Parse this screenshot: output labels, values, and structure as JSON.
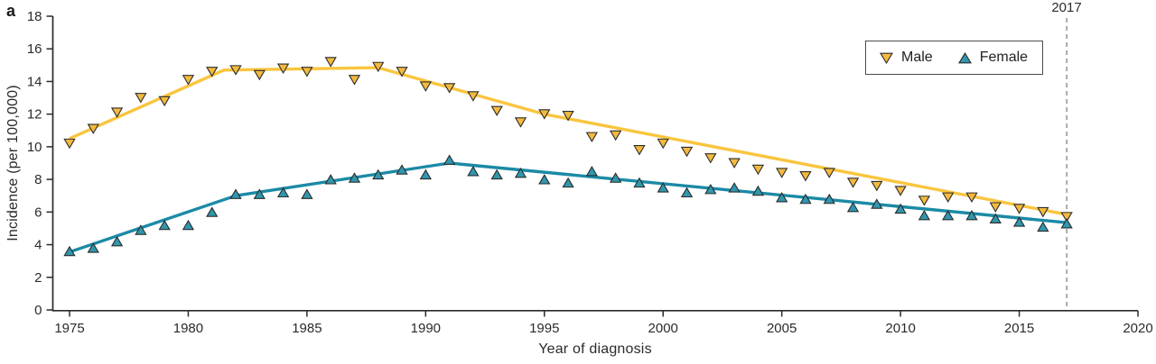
{
  "figure": {
    "panel_label": "a"
  },
  "chart_data": {
    "type": "scatter",
    "title": "",
    "xlabel": "Year of diagnosis",
    "ylabel": "Incidence (per 100,000)",
    "xlim": [
      1975,
      2020
    ],
    "ylim": [
      0,
      18
    ],
    "xticks": [
      1975,
      1980,
      1985,
      1990,
      1995,
      2000,
      2005,
      2010,
      2015,
      2020
    ],
    "yticks": [
      0,
      2,
      4,
      6,
      8,
      10,
      12,
      14,
      16,
      18
    ],
    "grid": false,
    "legend_position": "top-right",
    "annotation": {
      "label": "2017",
      "x": 2017,
      "style": "dashed-vertical-line"
    },
    "colors": {
      "axis": "#2b2b2b",
      "tick_text": "#2b2b2b",
      "dashed_line": "#8a8a8a",
      "marker_outline": "#2b2b2b"
    },
    "x": [
      1975,
      1976,
      1977,
      1978,
      1979,
      1980,
      1981,
      1982,
      1983,
      1984,
      1985,
      1986,
      1987,
      1988,
      1989,
      1990,
      1991,
      1992,
      1993,
      1994,
      1995,
      1996,
      1997,
      1998,
      1999,
      2000,
      2001,
      2002,
      2003,
      2004,
      2005,
      2006,
      2007,
      2008,
      2009,
      2010,
      2011,
      2012,
      2013,
      2014,
      2015,
      2016,
      2017
    ],
    "series": [
      {
        "name": "Male",
        "marker": "triangle-down",
        "marker_color": "#F4BA3F",
        "line_color": "#F9C53E",
        "values": [
          10.2,
          11.1,
          12.1,
          13.0,
          12.8,
          14.1,
          14.6,
          14.7,
          14.4,
          14.8,
          14.6,
          15.2,
          14.1,
          14.9,
          14.6,
          13.7,
          13.6,
          13.1,
          12.2,
          11.5,
          12.0,
          11.9,
          10.6,
          10.7,
          9.8,
          10.2,
          9.7,
          9.3,
          9.0,
          8.6,
          8.4,
          8.2,
          8.4,
          7.8,
          7.6,
          7.3,
          6.7,
          6.9,
          6.9,
          6.3,
          6.2,
          6.0,
          5.7
        ],
        "trend_line": [
          [
            1975,
            10.5
          ],
          [
            1981.5,
            14.7
          ],
          [
            1988,
            14.85
          ],
          [
            1995,
            12.0
          ],
          [
            2017,
            5.85
          ]
        ]
      },
      {
        "name": "Female",
        "marker": "triangle-up",
        "marker_color": "#2F97AE",
        "line_color": "#1B8AA6",
        "values": [
          3.6,
          3.8,
          4.2,
          4.9,
          5.2,
          5.2,
          6.0,
          7.1,
          7.1,
          7.2,
          7.1,
          8.0,
          8.1,
          8.3,
          8.6,
          8.3,
          9.2,
          8.5,
          8.3,
          8.4,
          8.0,
          7.8,
          8.5,
          8.1,
          7.8,
          7.5,
          7.2,
          7.4,
          7.5,
          7.3,
          6.9,
          6.8,
          6.8,
          6.3,
          6.5,
          6.2,
          5.8,
          5.8,
          5.8,
          5.6,
          5.4,
          5.1,
          5.3
        ],
        "trend_line": [
          [
            1975,
            3.55
          ],
          [
            1982,
            7.0
          ],
          [
            1991,
            9.0
          ],
          [
            2017,
            5.35
          ]
        ]
      }
    ]
  }
}
